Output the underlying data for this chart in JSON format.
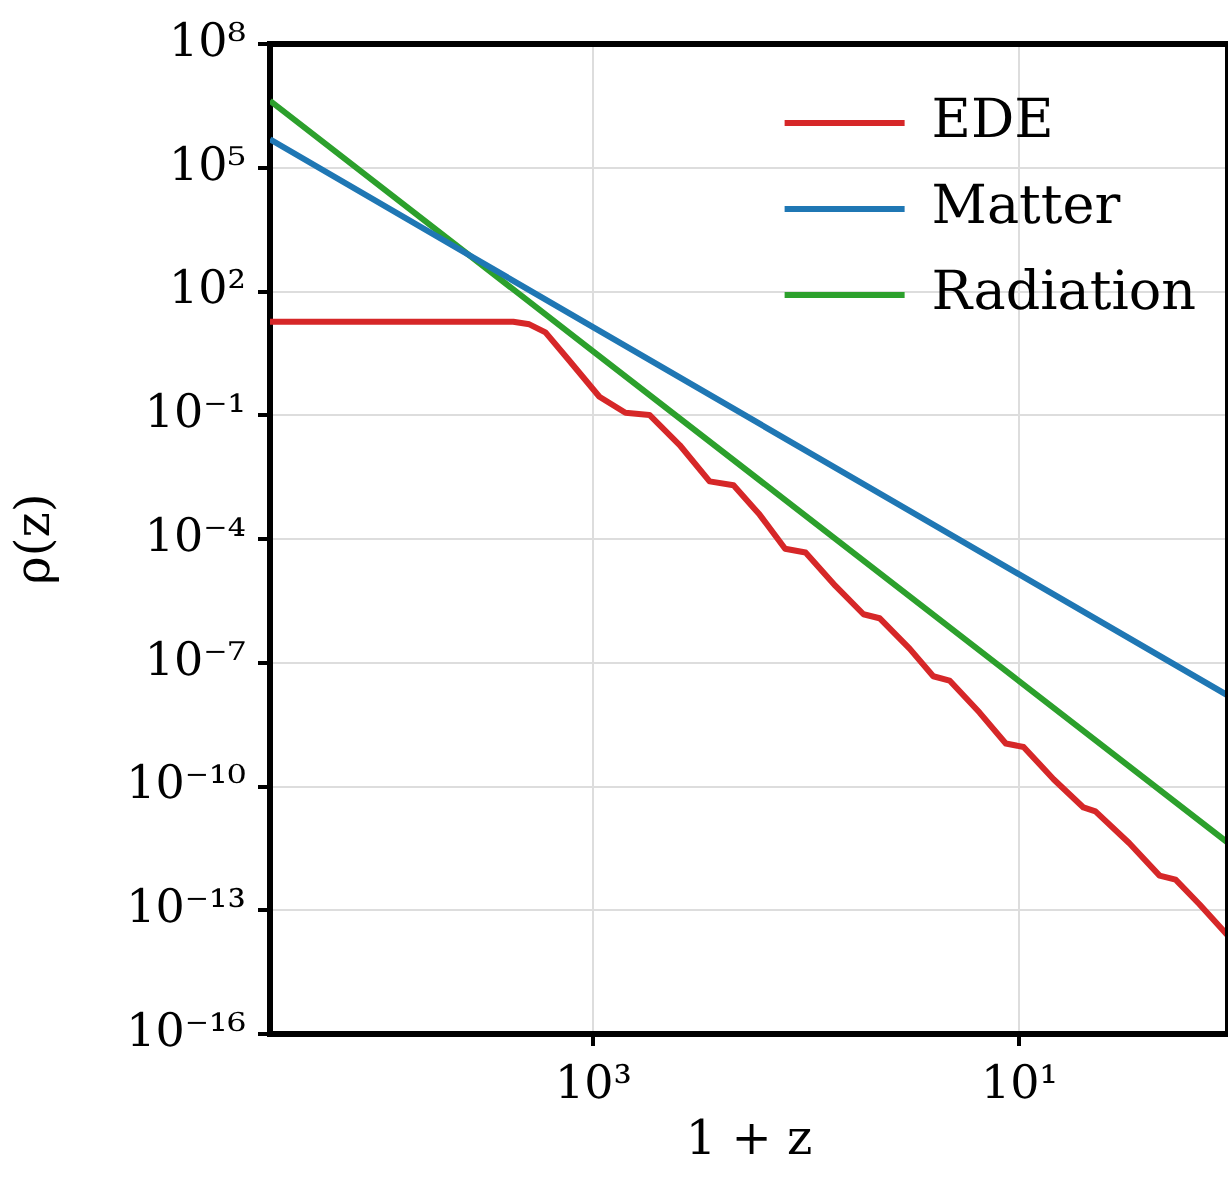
{
  "chart_data": {
    "type": "line",
    "xlabel": "1 + z",
    "ylabel": "ρ(z)",
    "log": "xy",
    "grid": true,
    "legend": "top right",
    "marker": "none",
    "line_style": "solid",
    "xlim": [
      33000,
      1.05
    ],
    "xticks": [
      {
        "value": 1000,
        "label": "10³"
      },
      {
        "value": 10,
        "label": "10¹"
      }
    ],
    "ylim": [
      1e-16,
      100000000.0
    ],
    "yticks": [
      {
        "value": 100000000.0,
        "label": "10⁸"
      },
      {
        "value": 100000.0,
        "label": "10⁵"
      },
      {
        "value": 100,
        "label": "10²"
      },
      {
        "value": 0.1,
        "label": "10⁻¹"
      },
      {
        "value": 0.0001,
        "label": "10⁻⁴"
      },
      {
        "value": 1e-07,
        "label": "10⁻⁷"
      },
      {
        "value": 1e-10,
        "label": "10⁻¹⁰"
      },
      {
        "value": 1e-13,
        "label": "10⁻¹³"
      },
      {
        "value": 1e-16,
        "label": "10⁻¹⁶"
      }
    ],
    "series": [
      {
        "name": "EDE",
        "color": "#d62728",
        "x": [
          33000,
          2380,
          2000,
          1680,
          1300,
          938,
          708,
          546,
          394,
          285,
          220,
          166,
          126,
          101,
          73.1,
          54.0,
          45.4,
          32.8,
          25.4,
          21.3,
          15.4,
          11.6,
          9.57,
          6.92,
          5.01,
          4.4,
          3.05,
          2.2,
          1.85,
          1.43,
          1.05
        ],
        "values": [
          18.5,
          18.5,
          16.0,
          10.2,
          2.12,
          0.281,
          0.115,
          0.102,
          0.019,
          0.0025,
          0.002,
          0.00039,
          5.8e-05,
          4.7e-05,
          7.3e-06,
          1.5e-06,
          1.2e-06,
          2.2e-07,
          4.7e-08,
          3.7e-08,
          6.2e-09,
          1.1e-09,
          9.1e-10,
          1.5e-10,
          3.1e-11,
          2.5e-11,
          4.2e-12,
          6.9e-13,
          5.5e-13,
          1.4e-13,
          2.4e-14
        ]
      },
      {
        "name": "Matter",
        "color": "#1f77b4",
        "x": [
          33000,
          1000,
          1.05
        ],
        "values": [
          490000.0,
          13.5,
          1.6e-08
        ]
      },
      {
        "name": "Radiation",
        "color": "#2ca02c",
        "x": [
          33000,
          1000,
          1.05
        ],
        "values": [
          4200000.0,
          3.5,
          4.3e-12
        ]
      }
    ]
  }
}
